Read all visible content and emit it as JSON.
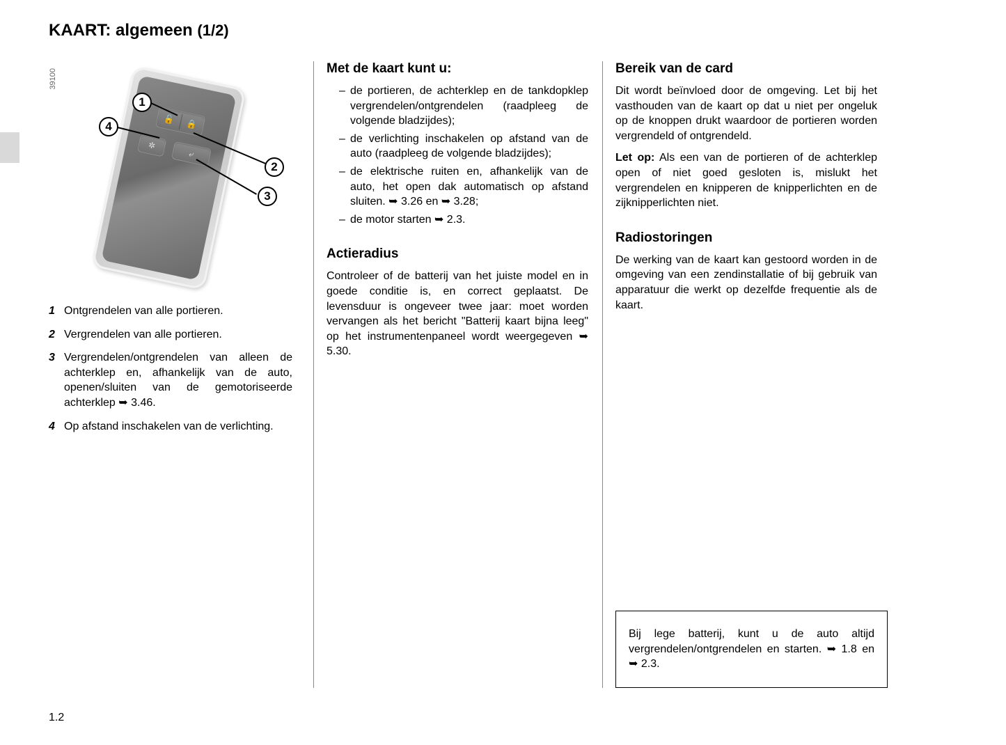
{
  "page_number": "1.2",
  "title": "KAART: algemeen",
  "title_suffix": "(1/2)",
  "illustration": {
    "code": "39100",
    "callouts": [
      "1",
      "2",
      "3",
      "4"
    ]
  },
  "legend": [
    {
      "num": "1",
      "text": "Ontgrendelen van alle portieren."
    },
    {
      "num": "2",
      "text": "Vergrendelen van alle portieren."
    },
    {
      "num": "3",
      "text": "Vergrendelen/ontgrendelen van alleen de achterklep en, afhankelijk van de auto, openen/sluiten van de gemotoriseerde achterklep ➥ 3.46."
    },
    {
      "num": "4",
      "text": "Op afstand inschakelen van de verlichting."
    }
  ],
  "mid": {
    "h1": "Met de kaart kunt u:",
    "list1": [
      "de portieren, de achterklep en de tankdopklep vergrendelen/ontgrendelen (raadpleeg de volgende bladzijdes);",
      "de verlichting inschakelen op afstand van de auto (raadpleeg de volgende bladzijdes);",
      "de elektrische ruiten en, afhankelijk van de auto, het open dak automatisch op afstand sluiten. ➥ 3.26 en ➥ 3.28;",
      "de motor starten ➥ 2.3."
    ],
    "h2": "Actieradius",
    "p2": "Controleer of de batterij van het juiste model en in goede conditie is, en correct geplaatst. De levensduur is ongeveer twee jaar: moet worden vervangen als het bericht \"Batterij kaart bijna leeg\" op het instrumentenpaneel wordt weergegeven ➥ 5.30."
  },
  "right": {
    "h1": "Bereik van de card",
    "p1": "Dit wordt beïnvloed door de omgeving. Let bij het vasthouden van de kaart op dat u niet per ongeluk op de knoppen drukt waardoor de portieren worden vergrendeld of ontgrendeld.",
    "p2_lead": "Let op:",
    "p2": " Als een van de portieren of de achterklep open of niet goed gesloten is, mislukt het vergrendelen en knipperen de knipperlichten en de zijknipperlichten niet.",
    "h2": "Radiostoringen",
    "p3": "De werking van de kaart kan gestoord worden in de omgeving van een zendinstallatie of bij gebruik van apparatuur die werkt op dezelfde frequentie als de kaart.",
    "note": "Bij lege batterij, kunt u de auto altijd vergrendelen/ontgrendelen en starten. ➥ 1.8 en ➥ 2.3."
  },
  "colors": {
    "text": "#000000",
    "background": "#ffffff",
    "tab": "#d9d9d9",
    "divider": "#888888"
  },
  "fonts": {
    "body_size_pt": 12,
    "heading_size_pt": 14,
    "title_size_pt": 18,
    "family": "Arial"
  }
}
